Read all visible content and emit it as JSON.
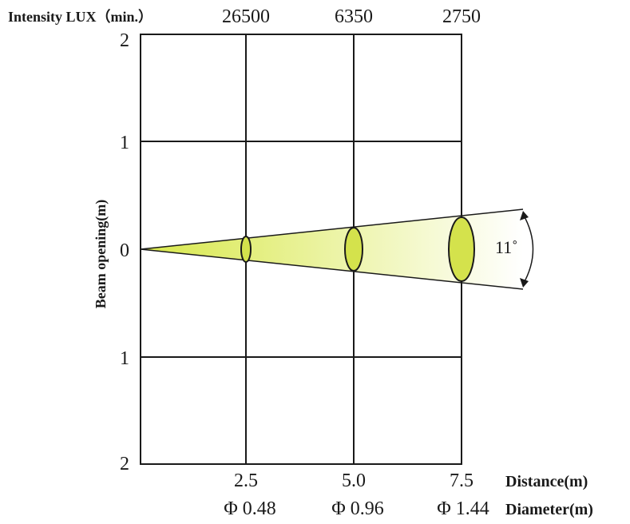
{
  "header": {
    "intensity_label": "Intensity LUX（min.）",
    "intensity_values": [
      "26500",
      "6350",
      "2750"
    ]
  },
  "y_axis": {
    "label": "Beam opening(m)",
    "ticks": [
      "2",
      "1",
      "0",
      "1",
      "2"
    ]
  },
  "x_axis": {
    "distance_label": "Distance(m)",
    "diameter_label": "Diameter(m)",
    "distances": [
      "2.5",
      "5.0",
      "7.5"
    ],
    "diameters": [
      "Φ 0.48",
      "Φ 0.96",
      "Φ 1.44"
    ]
  },
  "beam": {
    "angle_label": "11˚",
    "fill_color": "#d8e84a",
    "fade_color": "#ffffff",
    "ellipse_color": "#d4e24c"
  },
  "colors": {
    "grid": "#1a1a1a",
    "text": "#1a1a1a"
  }
}
